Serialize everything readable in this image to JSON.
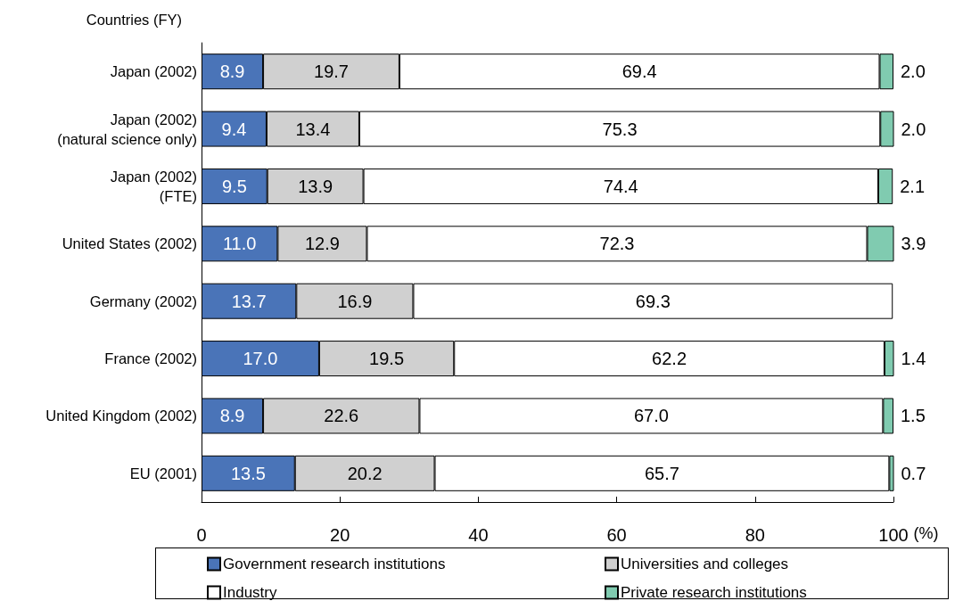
{
  "chart_data": {
    "type": "bar",
    "orientation": "horizontal",
    "stacked": true,
    "ylabel": "Countries (FY)",
    "xlabel": "(%)",
    "categories": [
      "Japan (2002)",
      "Japan (2002)\n(natural science only)",
      "Japan (2002)\n(FTE)",
      "United States (2002)",
      "Germany (2002)",
      "France (2002)",
      "United Kingdom (2002)",
      "EU (2001)"
    ],
    "series": [
      {
        "name": "Government research institutions",
        "color": "#4a74b8",
        "values": [
          8.9,
          9.4,
          9.5,
          11.0,
          13.7,
          17.0,
          8.9,
          13.5
        ],
        "value_labels": [
          "8.9",
          "9.4",
          "9.5",
          "11.0",
          "13.7",
          "17.0",
          "8.9",
          "13.5"
        ]
      },
      {
        "name": "Universities and colleges",
        "color": "#d0d0d0",
        "values": [
          19.7,
          13.4,
          13.9,
          12.9,
          16.9,
          19.5,
          22.6,
          20.2
        ],
        "value_labels": [
          "19.7",
          "13.4",
          "13.9",
          "12.9",
          "16.9",
          "19.5",
          "22.6",
          "20.2"
        ]
      },
      {
        "name": "Industry",
        "color": "#ffffff",
        "values": [
          69.4,
          75.3,
          74.4,
          72.3,
          69.3,
          62.2,
          67.0,
          65.7
        ],
        "value_labels": [
          "69.4",
          "75.3",
          "74.4",
          "72.3",
          "69.3",
          "62.2",
          "67.0",
          "65.7"
        ]
      },
      {
        "name": "Private research institutions",
        "color": "#80cbb0",
        "values": [
          2.0,
          2.0,
          2.1,
          3.9,
          null,
          1.4,
          1.5,
          0.7
        ],
        "value_labels": [
          "2.0",
          "2.0",
          "2.1",
          "3.9",
          null,
          "1.4",
          "1.5",
          "0.7"
        ]
      }
    ],
    "xlim": [
      0,
      100
    ],
    "xticks": [
      0,
      20,
      40,
      60,
      80,
      100
    ],
    "legend": "bottom"
  }
}
